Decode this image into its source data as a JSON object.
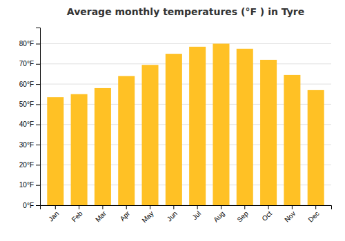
{
  "chart_data": {
    "type": "bar",
    "title": "Average monthly temperatures (°F ) in Tyre",
    "categories": [
      "Jan",
      "Feb",
      "Mar",
      "Apr",
      "May",
      "Jun",
      "Jul",
      "Aug",
      "Sep",
      "Oct",
      "Nov",
      "Dec"
    ],
    "values": [
      53.5,
      55,
      58,
      64,
      69.5,
      75,
      78.5,
      80,
      77.5,
      72,
      64.5,
      57
    ],
    "color": "#FFC125",
    "ylim": [
      0,
      88
    ],
    "yticks": [
      {
        "value": 0,
        "label": "0°F"
      },
      {
        "value": 10,
        "label": "10°F"
      },
      {
        "value": 20,
        "label": "20°F"
      },
      {
        "value": 30,
        "label": "30°F"
      },
      {
        "value": 40,
        "label": "40°F"
      },
      {
        "value": 50,
        "label": "50°F"
      },
      {
        "value": 60,
        "label": "60°F"
      },
      {
        "value": 70,
        "label": "70°F"
      },
      {
        "value": 80,
        "label": "80°F"
      }
    ],
    "grid": true
  }
}
